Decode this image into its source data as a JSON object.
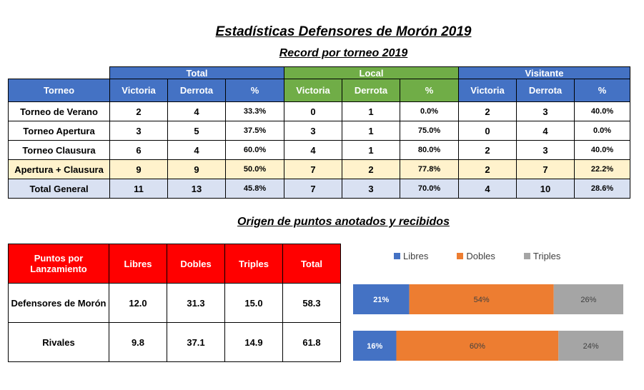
{
  "title": "Estadísticas Defensores de Morón 2019",
  "subtitle": "Record por torneo 2019",
  "section2_title": "Origen de puntos anotados y recibidos",
  "record_table": {
    "groups": [
      "Total",
      "Local",
      "Visitante"
    ],
    "group_colors": [
      "#4472c4",
      "#70ad47",
      "#4472c4"
    ],
    "headers": [
      "Torneo",
      "Victoria",
      "Derrota",
      "%",
      "Victoria",
      "Derrota",
      "%",
      "Victoria",
      "Derrota",
      "%"
    ],
    "rows": [
      [
        "Torneo de Verano",
        "2",
        "4",
        "33.3%",
        "0",
        "1",
        "0.0%",
        "2",
        "3",
        "40.0%"
      ],
      [
        "Torneo Apertura",
        "3",
        "5",
        "37.5%",
        "3",
        "1",
        "75.0%",
        "0",
        "4",
        "0.0%"
      ],
      [
        "Torneo Clausura",
        "6",
        "4",
        "60.0%",
        "4",
        "1",
        "80.0%",
        "2",
        "3",
        "40.0%"
      ],
      [
        "Apertura + Clausura",
        "9",
        "9",
        "50.0%",
        "7",
        "2",
        "77.8%",
        "2",
        "7",
        "22.2%"
      ],
      [
        "Total General",
        "11",
        "13",
        "45.8%",
        "7",
        "3",
        "70.0%",
        "4",
        "10",
        "28.6%"
      ]
    ]
  },
  "points_table": {
    "headers": [
      "Puntos por Lanzamiento",
      "Libres",
      "Dobles",
      "Triples",
      "Total"
    ],
    "rows": [
      [
        "Defensores de Morón",
        "12.0",
        "31.3",
        "15.0",
        "58.3"
      ],
      [
        "Rivales",
        "9.8",
        "37.1",
        "14.9",
        "61.8"
      ]
    ]
  },
  "chart_data": {
    "type": "bar",
    "stacked": true,
    "orientation": "horizontal",
    "percent_stacked": true,
    "categories": [
      "Defensores de Morón",
      "Rivales"
    ],
    "series": [
      {
        "name": "Libres",
        "values": [
          21,
          16
        ],
        "labels": [
          "21%",
          "16%"
        ],
        "color": "#4472c4"
      },
      {
        "name": "Dobles",
        "values": [
          54,
          60
        ],
        "labels": [
          "54%",
          "60%"
        ],
        "color": "#ed7d31"
      },
      {
        "name": "Triples",
        "values": [
          26,
          24
        ],
        "labels": [
          "26%",
          "24%"
        ],
        "color": "#a5a5a5"
      }
    ],
    "legend_position": "top",
    "grid": false
  }
}
